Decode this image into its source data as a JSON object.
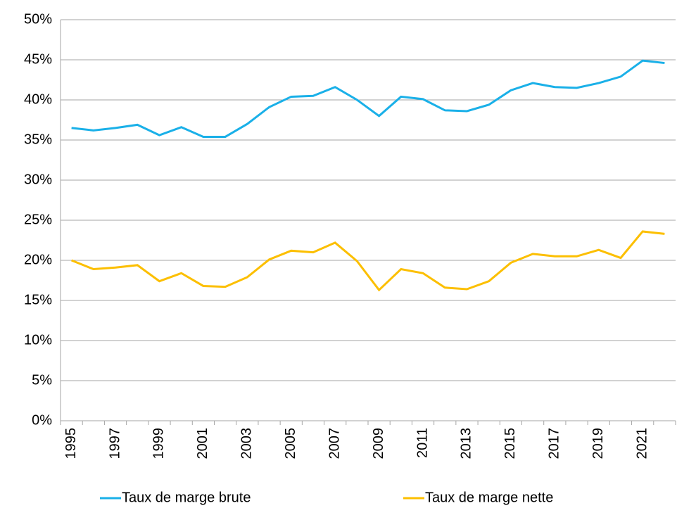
{
  "chart_data": {
    "type": "line",
    "categories": [
      "1995",
      null,
      "1997",
      null,
      "1999",
      null,
      "2001",
      null,
      "2003",
      null,
      "2005",
      null,
      "2007",
      null,
      "2009",
      null,
      "2011",
      null,
      "2013",
      null,
      "2015",
      null,
      "2017",
      null,
      "2019",
      null,
      "2021",
      null
    ],
    "series": [
      {
        "name": "Taux de marge brute",
        "color": "#1ab0e8",
        "values": [
          36.5,
          36.2,
          36.5,
          36.9,
          35.6,
          36.6,
          35.4,
          35.4,
          37.0,
          39.1,
          40.4,
          40.5,
          41.6,
          40.0,
          38.0,
          40.4,
          40.1,
          38.7,
          38.6,
          39.4,
          41.2,
          42.1,
          41.6,
          41.5,
          42.1,
          42.9,
          44.9,
          44.6
        ]
      },
      {
        "name": "Taux de marge nette",
        "color": "#fcbf00",
        "values": [
          20.0,
          18.9,
          19.1,
          19.4,
          17.4,
          18.4,
          16.8,
          16.7,
          17.9,
          20.1,
          21.2,
          21.0,
          22.2,
          19.9,
          16.3,
          18.9,
          18.4,
          16.6,
          16.4,
          17.4,
          19.7,
          20.8,
          20.5,
          20.5,
          21.3,
          20.3,
          23.6,
          23.3
        ]
      }
    ],
    "ylim": [
      0,
      50
    ],
    "yticks": [
      {
        "value": 0,
        "label": "0%"
      },
      {
        "value": 5,
        "label": "5%"
      },
      {
        "value": 10,
        "label": "10%"
      },
      {
        "value": 15,
        "label": "15%"
      },
      {
        "value": 20,
        "label": "20%"
      },
      {
        "value": 25,
        "label": "25%"
      },
      {
        "value": 30,
        "label": "30%"
      },
      {
        "value": 35,
        "label": "35%"
      },
      {
        "value": 40,
        "label": "40%"
      },
      {
        "value": 45,
        "label": "45%"
      },
      {
        "value": 50,
        "label": "50%"
      }
    ],
    "grid": true,
    "legend": "bottom"
  }
}
